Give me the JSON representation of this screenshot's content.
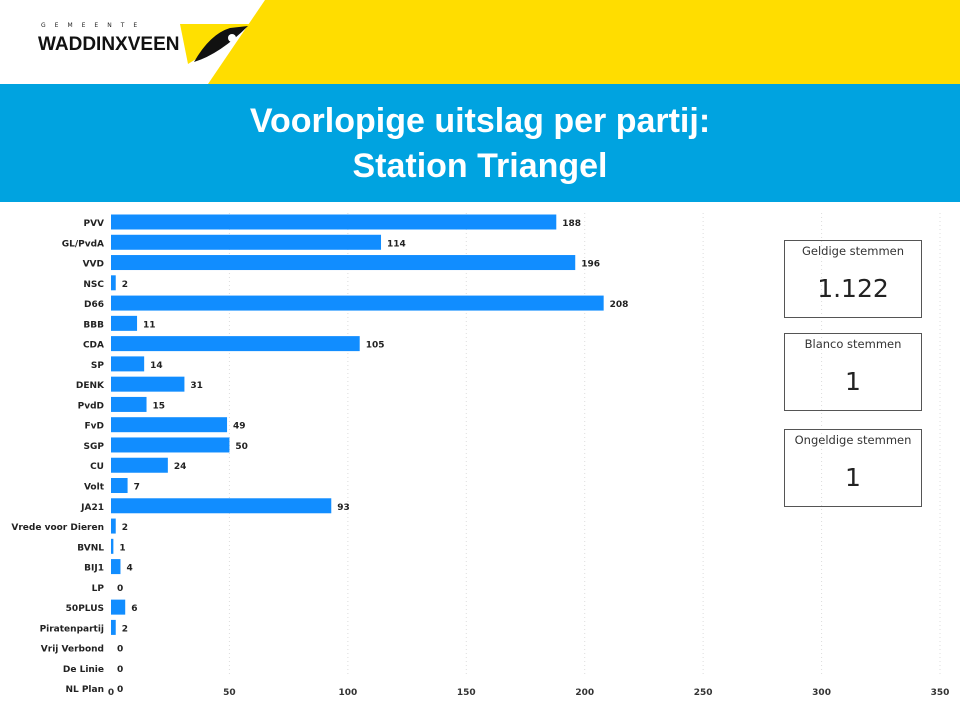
{
  "header": {
    "logo_small": "GEMEENTE",
    "logo_main": "WADDINXVEEN",
    "colors": {
      "yellow": "#ffdd00",
      "banner": "#00a3e0",
      "bar": "#118dff"
    }
  },
  "title": {
    "line1": "Voorlopige uitslag per partij:",
    "line2": "Station Triangel"
  },
  "cards": [
    {
      "label": "Geldige stemmen",
      "value": "1.122"
    },
    {
      "label": "Blanco stemmen",
      "value": "1"
    },
    {
      "label": "Ongeldige stemmen",
      "value": "1"
    }
  ],
  "chart_data": {
    "type": "bar",
    "orientation": "horizontal",
    "grid": true,
    "xlim": [
      0,
      350
    ],
    "xticks": [
      0,
      50,
      100,
      150,
      200,
      250,
      300,
      350
    ],
    "categories": [
      "PVV",
      "GL/PvdA",
      "VVD",
      "NSC",
      "D66",
      "BBB",
      "CDA",
      "SP",
      "DENK",
      "PvdD",
      "FvD",
      "SGP",
      "CU",
      "Volt",
      "JA21",
      "Vrede voor Dieren",
      "BVNL",
      "BIJ1",
      "LP",
      "50PLUS",
      "Piratenpartij",
      "Vrij Verbond",
      "De Linie",
      "NL Plan"
    ],
    "values": [
      188,
      114,
      196,
      2,
      208,
      11,
      105,
      14,
      31,
      15,
      49,
      50,
      24,
      7,
      93,
      2,
      1,
      4,
      0,
      6,
      2,
      0,
      0,
      0
    ]
  }
}
